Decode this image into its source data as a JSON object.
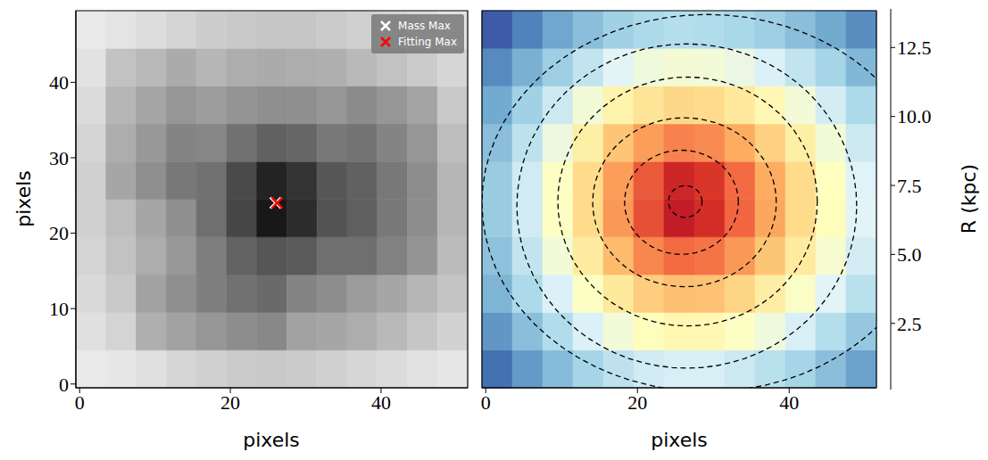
{
  "chart_data": [
    {
      "type": "heatmap",
      "xlabel": "pixels",
      "ylabel": "pixels",
      "xlim": [
        -0.5,
        51.5
      ],
      "ylim": [
        -0.5,
        49.5
      ],
      "xticks": [
        0,
        20,
        40
      ],
      "yticks": [
        0,
        10,
        20,
        30,
        40
      ],
      "x_edges": [
        -0.5,
        3.5,
        7.5,
        11.5,
        15.5,
        19.5,
        23.5,
        27.5,
        31.5,
        35.5,
        39.5,
        43.5,
        47.5,
        51.5
      ],
      "y_edges": [
        -0.5,
        4.5,
        9.5,
        14.5,
        19.5,
        24.5,
        29.5,
        34.5,
        39.5,
        44.5,
        49.5
      ],
      "cells": [
        [
          0.04,
          0.05,
          0.08,
          0.12,
          0.15,
          0.17,
          0.18,
          0.17,
          0.15,
          0.12,
          0.1,
          0.07,
          0.05
        ],
        [
          0.08,
          0.13,
          0.29,
          0.35,
          0.4,
          0.44,
          0.46,
          0.35,
          0.33,
          0.3,
          0.25,
          0.19,
          0.14
        ],
        [
          0.11,
          0.18,
          0.35,
          0.43,
          0.5,
          0.56,
          0.59,
          0.48,
          0.44,
          0.38,
          0.33,
          0.26,
          0.2
        ],
        [
          0.13,
          0.21,
          0.3,
          0.39,
          0.5,
          0.62,
          0.68,
          0.66,
          0.57,
          0.57,
          0.49,
          0.41,
          0.24
        ],
        [
          0.15,
          0.23,
          0.33,
          0.43,
          0.57,
          0.75,
          0.95,
          0.86,
          0.69,
          0.64,
          0.53,
          0.44,
          0.26
        ],
        [
          0.15,
          0.33,
          0.43,
          0.53,
          0.56,
          0.73,
          0.9,
          0.83,
          0.68,
          0.63,
          0.53,
          0.44,
          0.26
        ],
        [
          0.13,
          0.3,
          0.39,
          0.48,
          0.47,
          0.56,
          0.63,
          0.61,
          0.53,
          0.55,
          0.48,
          0.4,
          0.23
        ],
        [
          0.1,
          0.26,
          0.33,
          0.4,
          0.37,
          0.41,
          0.43,
          0.43,
          0.4,
          0.45,
          0.4,
          0.34,
          0.18
        ],
        [
          0.07,
          0.21,
          0.25,
          0.31,
          0.26,
          0.3,
          0.31,
          0.3,
          0.29,
          0.25,
          0.21,
          0.17,
          0.12
        ],
        [
          0.04,
          0.06,
          0.09,
          0.13,
          0.16,
          0.18,
          0.19,
          0.19,
          0.17,
          0.15,
          0.13,
          0.1,
          0.07
        ]
      ],
      "series": [
        {
          "name": "Mass Max",
          "color": "#ffffff",
          "x": [
            26
          ],
          "values": [
            24
          ],
          "marker": "x"
        },
        {
          "name": "Fitting Max",
          "color": "#ff0000",
          "x": [
            26.2
          ],
          "values": [
            24
          ],
          "marker": "x"
        }
      ],
      "legend": "upper right"
    },
    {
      "type": "heatmap",
      "xlabel": "pixels",
      "xlim": [
        -0.5,
        51.5
      ],
      "ylim": [
        -0.5,
        49.5
      ],
      "xticks": [
        0,
        20,
        40
      ],
      "yticks": [
        0,
        10,
        20,
        30,
        40
      ],
      "tick_labels": "x",
      "x_edges": [
        -0.5,
        3.5,
        7.5,
        11.5,
        15.5,
        19.5,
        23.5,
        27.5,
        31.5,
        35.5,
        39.5,
        43.5,
        47.5,
        51.5
      ],
      "y_edges": [
        -0.5,
        4.5,
        9.5,
        14.5,
        19.5,
        24.5,
        29.5,
        34.5,
        39.5,
        44.5,
        49.5
      ],
      "cells": [
        [
          12.6,
          11.6,
          10.7,
          9.9,
          9.3,
          8.8,
          8.6,
          8.6,
          8.9,
          9.4,
          9.9,
          10.6,
          11.4
        ],
        [
          11.7,
          10.6,
          9.6,
          8.5,
          7.6,
          6.9,
          6.6,
          6.7,
          7.1,
          7.7,
          8.6,
          9.5,
          10.3
        ],
        [
          10.9,
          9.7,
          8.5,
          7.1,
          6.0,
          5.1,
          4.7,
          4.8,
          5.3,
          6.2,
          7.2,
          8.3,
          9.4
        ],
        [
          10.5,
          9.2,
          7.6,
          6.1,
          4.6,
          3.4,
          2.8,
          3.0,
          3.8,
          4.9,
          6.1,
          7.4,
          8.7
        ],
        [
          10.2,
          8.8,
          7.1,
          5.5,
          3.8,
          2.2,
          0.9,
          1.4,
          2.7,
          4.1,
          5.5,
          6.9,
          8.3
        ],
        [
          10.2,
          8.8,
          7.1,
          5.5,
          3.9,
          2.4,
          1.2,
          1.6,
          2.8,
          4.2,
          5.5,
          7.0,
          8.4
        ],
        [
          10.6,
          9.3,
          7.8,
          6.3,
          4.9,
          3.9,
          3.3,
          3.5,
          4.2,
          5.2,
          6.3,
          7.6,
          8.9
        ],
        [
          11.2,
          10.0,
          8.9,
          7.6,
          6.5,
          5.8,
          5.4,
          5.5,
          6.0,
          6.7,
          7.6,
          8.7,
          9.7
        ],
        [
          12.0,
          11.0,
          10.1,
          9.2,
          8.3,
          7.7,
          7.5,
          7.6,
          7.9,
          8.5,
          9.2,
          9.9,
          10.8
        ],
        [
          13.1,
          12.2,
          11.3,
          10.6,
          10.0,
          9.7,
          9.5,
          9.6,
          9.8,
          10.1,
          10.6,
          11.2,
          11.9
        ]
      ],
      "contours": [
        {
          "x0": 26.3,
          "y0": 24.2,
          "a": 2.2,
          "b": 2.1
        },
        {
          "x0": 25.8,
          "y0": 24.1,
          "a": 7.5,
          "b": 6.9
        },
        {
          "x0": 26.2,
          "y0": 24.1,
          "a": 12.1,
          "b": 11.2
        },
        {
          "x0": 26.6,
          "y0": 24.2,
          "a": 17.1,
          "b": 16.5
        },
        {
          "x0": 26.5,
          "y0": 23.6,
          "a": 22.4,
          "b": 21.5
        },
        {
          "x0": 29.2,
          "y0": 24.0,
          "a": 29.7,
          "b": 25.0
        }
      ],
      "line_style": "dashed",
      "colorbar": {
        "label": "R (kpc)",
        "range": [
          0.1,
          13.9
        ],
        "ticks": [
          2.5,
          {
            "value": 5,
            "label": "5.0"
          },
          7.5,
          {
            "value": 10,
            "label": "10.0"
          },
          12.5
        ]
      }
    }
  ]
}
